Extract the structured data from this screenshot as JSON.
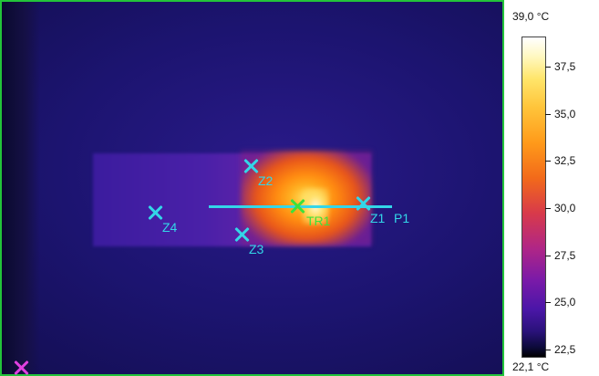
{
  "scale": {
    "max_label": "39,0 °C",
    "min_label": "22,1 °C",
    "ticks": [
      "37,5",
      "35,0",
      "32,5",
      "30,0",
      "27,5",
      "25,0",
      "22,5"
    ]
  },
  "markers": {
    "z1": "Z1",
    "z2": "Z2",
    "z3": "Z3",
    "z4": "Z4",
    "tr1": "TR1",
    "p1": "P1"
  },
  "colors": {
    "frame_border": "#23c43a",
    "cursor_cyan": "#33d6e8",
    "cursor_green": "#3ee03a",
    "corner_magenta": "#e040e0"
  }
}
